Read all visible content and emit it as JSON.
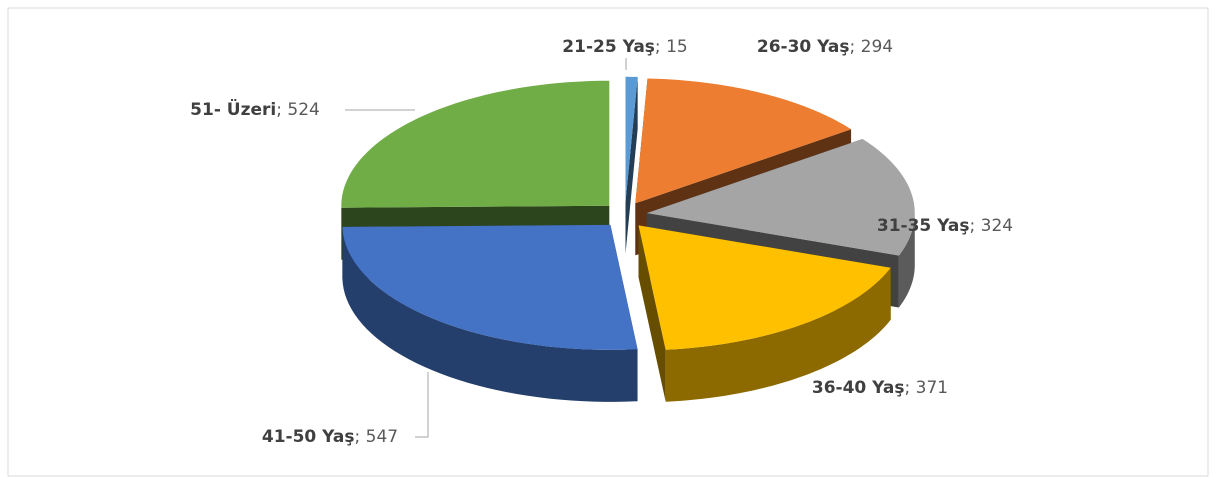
{
  "chart_data": {
    "type": "pie3d",
    "categories": [
      "21-25 Yaş",
      "26-30 Yaş",
      "31-35 Yaş",
      "36-40 Yaş",
      "41-50 Yaş",
      "51- Üzeri"
    ],
    "values": [
      15,
      294,
      324,
      371,
      547,
      524
    ],
    "colors": [
      "#5b9bd5",
      "#ed7d31",
      "#a5a5a5",
      "#ffc000",
      "#4472c4",
      "#70ad47"
    ],
    "label_separator": "; "
  }
}
